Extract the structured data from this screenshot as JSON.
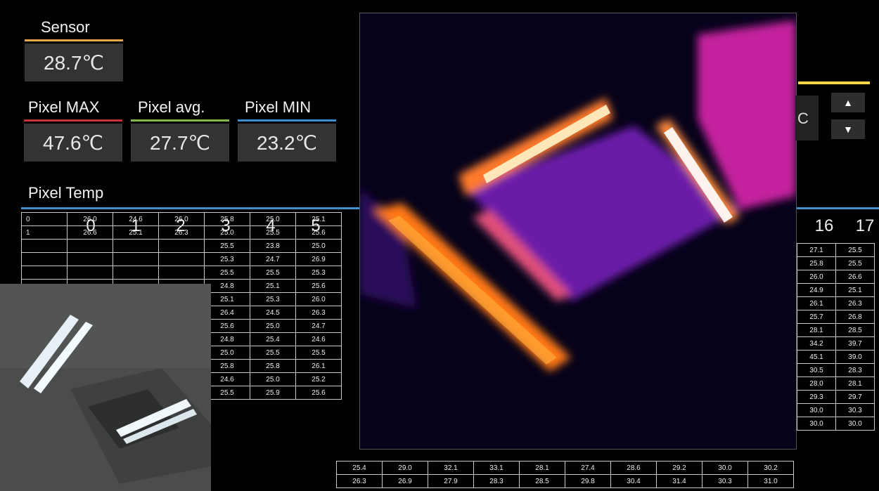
{
  "sensor": {
    "label": "Sensor",
    "value": "28.7℃",
    "color": "#e8a64a"
  },
  "pixel_max": {
    "label": "Pixel MAX",
    "value": "47.6℃",
    "color": "#c8323c"
  },
  "pixel_avg": {
    "label": "Pixel avg.",
    "value": "27.7℃",
    "color": "#84b84a"
  },
  "pixel_min": {
    "label": "Pixel MIN",
    "value": "23.2℃",
    "color": "#3c8fd0"
  },
  "pixel_temp": {
    "label": "Pixel Temp",
    "color": "#3c8fd0"
  },
  "columns_left": [
    "0",
    "1",
    "2",
    "3",
    "4",
    "5"
  ],
  "columns_right": [
    "16",
    "17"
  ],
  "rows_left": [
    [
      "0",
      "26.0",
      "24.6",
      "26.0",
      "25.8",
      "25.0",
      "25.1"
    ],
    [
      "1",
      "26.6",
      "25.1",
      "26.3",
      "25.0",
      "25.5",
      "25.6"
    ],
    [
      "",
      "",
      "",
      "",
      "25.5",
      "23.8",
      "25.0"
    ],
    [
      "",
      "",
      "",
      "",
      "25.3",
      "24.7",
      "26.9"
    ],
    [
      "",
      "",
      "",
      "",
      "25.5",
      "25.5",
      "25.3"
    ],
    [
      "",
      "",
      "",
      "",
      "24.8",
      "25.1",
      "25.6"
    ],
    [
      "",
      "",
      "",
      "",
      "25.1",
      "25.3",
      "26.0"
    ],
    [
      "",
      "",
      "",
      "",
      "26.4",
      "24.5",
      "26.3"
    ],
    [
      "",
      "",
      "",
      "",
      "25.6",
      "25.0",
      "24.7"
    ],
    [
      "",
      "",
      "",
      "",
      "24.8",
      "25.4",
      "24.6"
    ],
    [
      "",
      "",
      "",
      "",
      "25.0",
      "25.5",
      "25.5"
    ],
    [
      "",
      "",
      "",
      "",
      "25.8",
      "25.8",
      "26.1"
    ],
    [
      "",
      "",
      "",
      "",
      "24.6",
      "25.0",
      "25.2"
    ],
    [
      "",
      "",
      "",
      "",
      "25.5",
      "25.9",
      "25.6"
    ]
  ],
  "rows_right": [
    [
      "27.1",
      "25.5"
    ],
    [
      "25.8",
      "25.5"
    ],
    [
      "26.0",
      "26.6"
    ],
    [
      "24.9",
      "25.1"
    ],
    [
      "26.1",
      "26.3"
    ],
    [
      "25.7",
      "26.8"
    ],
    [
      "28.1",
      "28.5"
    ],
    [
      "34.2",
      "39.7"
    ],
    [
      "45.1",
      "39.0"
    ],
    [
      "30.5",
      "28.3"
    ],
    [
      "28.0",
      "28.1"
    ],
    [
      "29.3",
      "29.7"
    ],
    [
      "30.0",
      "30.3"
    ],
    [
      "30.0",
      "30.0"
    ]
  ],
  "bottom_row_mid": [
    "25.4",
    "29.0",
    "32.1",
    "33.1",
    "28.1",
    "27.4",
    "28.6",
    "29.2",
    "30.0",
    "30.2"
  ],
  "bottom_row_last": [
    "26.3",
    "26.9",
    "27.9",
    "28.3",
    "28.5",
    "29.8",
    "30.4",
    "31.4",
    "30.3",
    "31.0"
  ],
  "spin_up": "▲",
  "spin_down": "▼",
  "range_partial": "C"
}
